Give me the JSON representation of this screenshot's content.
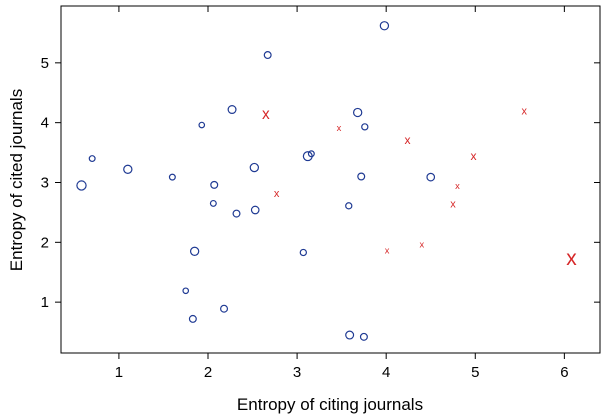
{
  "chart_data": {
    "type": "scatter",
    "xlabel": "Entropy of citing journals",
    "ylabel": "Entropy of cited journals",
    "xlim": [
      0.35,
      6.4
    ],
    "ylim": [
      0.15,
      5.95
    ],
    "xticks": [
      1,
      2,
      3,
      4,
      5,
      6
    ],
    "yticks": [
      1,
      2,
      3,
      4,
      5
    ],
    "grid": false,
    "legend": "none",
    "series": [
      {
        "marker": "circle",
        "color": "#1f3a93",
        "points": [
          {
            "x": 0.58,
            "y": 2.95,
            "size": 1.35
          },
          {
            "x": 0.7,
            "y": 3.4,
            "size": 0.85
          },
          {
            "x": 1.1,
            "y": 3.22,
            "size": 1.2
          },
          {
            "x": 1.6,
            "y": 3.09,
            "size": 0.85
          },
          {
            "x": 1.75,
            "y": 1.19,
            "size": 0.8
          },
          {
            "x": 1.83,
            "y": 0.72,
            "size": 1.0
          },
          {
            "x": 1.85,
            "y": 1.85,
            "size": 1.2
          },
          {
            "x": 1.93,
            "y": 3.96,
            "size": 0.8
          },
          {
            "x": 2.06,
            "y": 2.65,
            "size": 0.85
          },
          {
            "x": 2.07,
            "y": 2.96,
            "size": 1.0
          },
          {
            "x": 2.18,
            "y": 0.89,
            "size": 1.0
          },
          {
            "x": 2.27,
            "y": 4.22,
            "size": 1.15
          },
          {
            "x": 2.32,
            "y": 2.48,
            "size": 1.0
          },
          {
            "x": 2.52,
            "y": 3.25,
            "size": 1.2
          },
          {
            "x": 2.53,
            "y": 2.54,
            "size": 1.1
          },
          {
            "x": 2.67,
            "y": 5.13,
            "size": 1.0
          },
          {
            "x": 3.07,
            "y": 1.83,
            "size": 0.9
          },
          {
            "x": 3.12,
            "y": 3.44,
            "size": 1.3
          },
          {
            "x": 3.16,
            "y": 3.48,
            "size": 0.85
          },
          {
            "x": 3.58,
            "y": 2.61,
            "size": 0.9
          },
          {
            "x": 3.59,
            "y": 0.45,
            "size": 1.15
          },
          {
            "x": 3.68,
            "y": 4.17,
            "size": 1.2
          },
          {
            "x": 3.72,
            "y": 3.1,
            "size": 1.0
          },
          {
            "x": 3.75,
            "y": 0.42,
            "size": 1.0
          },
          {
            "x": 3.76,
            "y": 3.93,
            "size": 0.9
          },
          {
            "x": 3.98,
            "y": 5.62,
            "size": 1.2
          },
          {
            "x": 4.5,
            "y": 3.09,
            "size": 1.1
          }
        ]
      },
      {
        "marker": "x",
        "color": "#d62728",
        "points": [
          {
            "x": 2.65,
            "y": 4.14,
            "size": 1.4
          },
          {
            "x": 2.77,
            "y": 2.81,
            "size": 1.0
          },
          {
            "x": 3.47,
            "y": 3.91,
            "size": 0.85
          },
          {
            "x": 4.01,
            "y": 1.86,
            "size": 0.85
          },
          {
            "x": 4.24,
            "y": 3.71,
            "size": 1.1
          },
          {
            "x": 4.4,
            "y": 1.96,
            "size": 0.85
          },
          {
            "x": 4.75,
            "y": 2.63,
            "size": 1.0
          },
          {
            "x": 4.8,
            "y": 2.94,
            "size": 0.85
          },
          {
            "x": 4.98,
            "y": 3.44,
            "size": 1.1
          },
          {
            "x": 5.55,
            "y": 4.19,
            "size": 1.0
          },
          {
            "x": 6.08,
            "y": 1.73,
            "size": 1.9
          }
        ]
      }
    ]
  }
}
